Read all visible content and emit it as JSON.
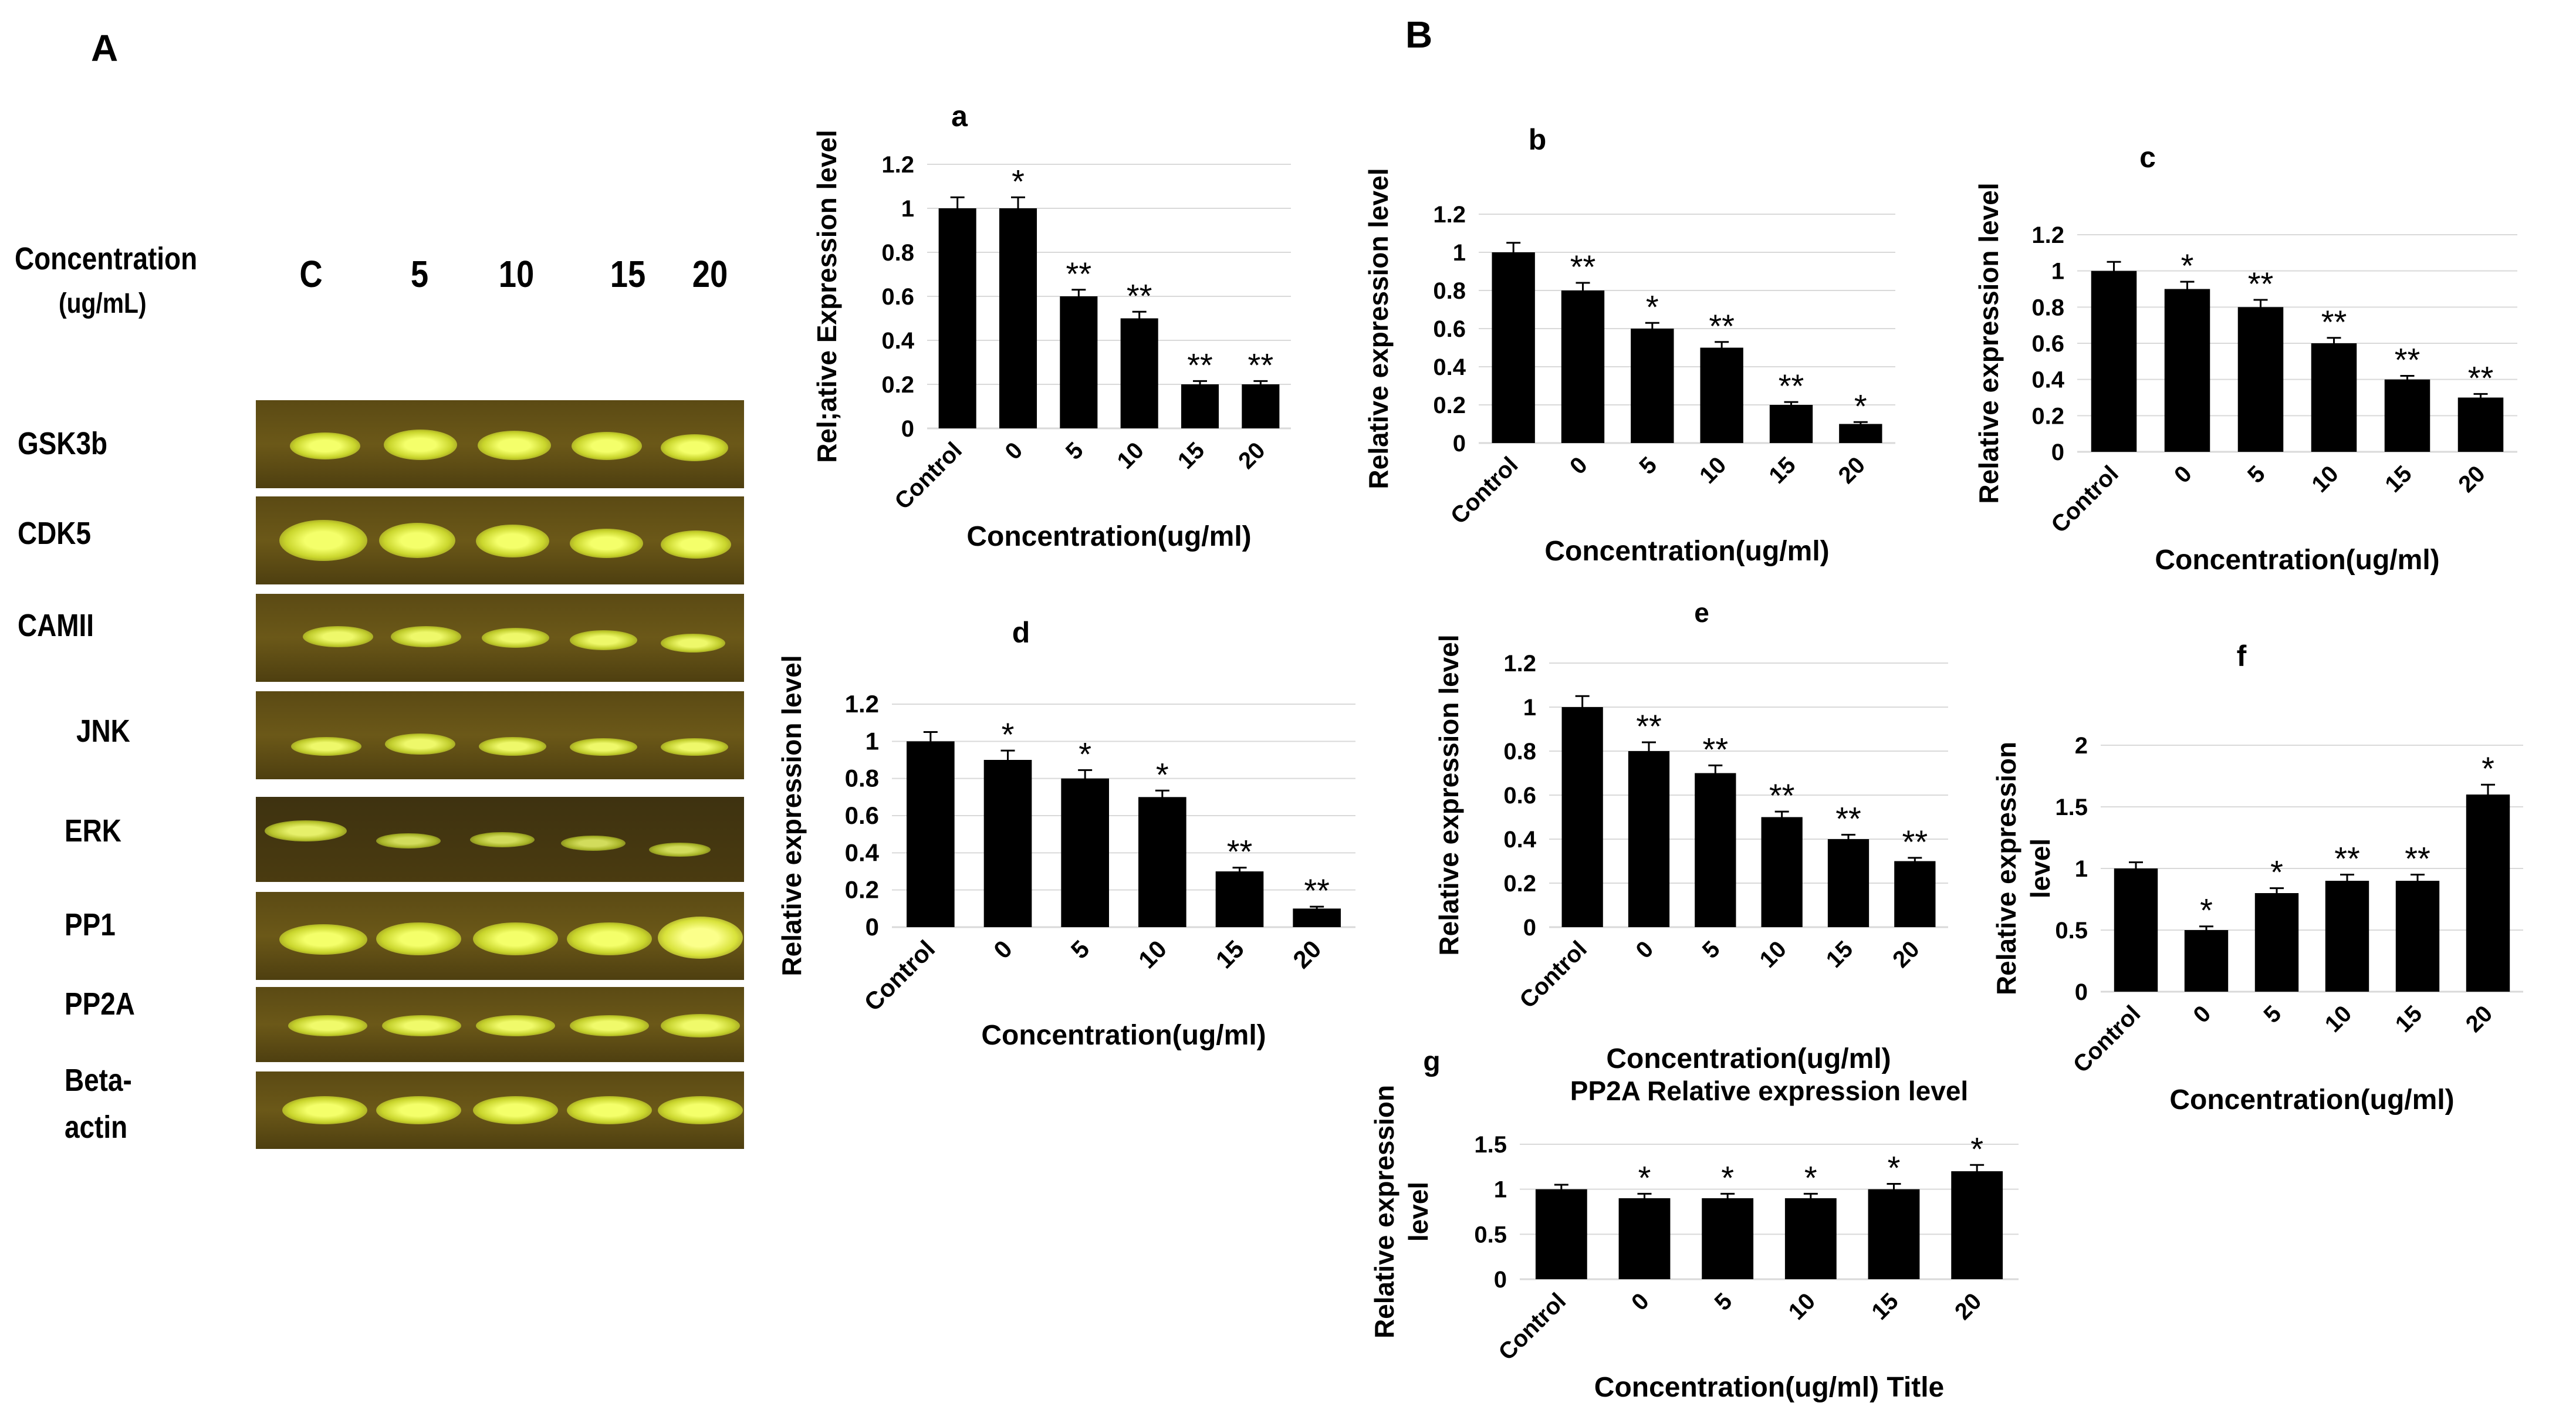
{
  "panel_labels": {
    "A": "A",
    "B": "B"
  },
  "gel": {
    "concentration_label": "Concentration",
    "concentration_unit": "(ug/mL)",
    "lanes": [
      "C",
      "5",
      "10",
      "15",
      "20"
    ],
    "genes": [
      "GSK3b",
      "CDK5",
      "CAMII",
      "JNK",
      "ERK",
      "PP1",
      "PP2A",
      "Beta-",
      "actin"
    ]
  },
  "chart_data": [
    {
      "id": "a",
      "type": "bar",
      "title": "a",
      "categories": [
        "Control",
        "0",
        "5",
        "10",
        "15",
        "20"
      ],
      "values": [
        1.0,
        1.0,
        0.6,
        0.5,
        0.2,
        0.2
      ],
      "errors": [
        0.05,
        0.05,
        0.03,
        0.03,
        0.015,
        0.015
      ],
      "significance": [
        "",
        "*",
        "**",
        "**",
        "**",
        "**"
      ],
      "xlabel": "Concentration(ug/ml)",
      "ylabel": "Rel;ative Expression level",
      "ylim": [
        0,
        1.2
      ],
      "yticks": [
        "0",
        "0.2",
        "0.4",
        "0.6",
        "0.8",
        "1",
        "1.2"
      ]
    },
    {
      "id": "b",
      "type": "bar",
      "title": "b",
      "categories": [
        "Control",
        "0",
        "5",
        "10",
        "15",
        "20"
      ],
      "values": [
        1.0,
        0.8,
        0.6,
        0.5,
        0.2,
        0.1
      ],
      "errors": [
        0.05,
        0.04,
        0.03,
        0.03,
        0.015,
        0.01
      ],
      "significance": [
        "",
        "**",
        "*",
        "**",
        "**",
        "*"
      ],
      "xlabel": "Concentration(ug/ml)",
      "ylabel": "Relative expression level",
      "ylim": [
        0,
        1.2
      ],
      "yticks": [
        "0",
        "0.2",
        "0.4",
        "0.6",
        "0.8",
        "1",
        "1.2"
      ]
    },
    {
      "id": "c",
      "type": "bar",
      "title": "c",
      "categories": [
        "Control",
        "0",
        "5",
        "10",
        "15",
        "20"
      ],
      "values": [
        1.0,
        0.9,
        0.8,
        0.6,
        0.4,
        0.3
      ],
      "errors": [
        0.05,
        0.04,
        0.04,
        0.03,
        0.02,
        0.02
      ],
      "significance": [
        "",
        "*",
        "**",
        "**",
        "**",
        "**"
      ],
      "xlabel": "Concentration(ug/ml)",
      "ylabel": "Relative expression level",
      "ylim": [
        0,
        1.2
      ],
      "yticks": [
        "0",
        "0.2",
        "0.4",
        "0.6",
        "0.8",
        "1",
        "1.2"
      ]
    },
    {
      "id": "d",
      "type": "bar",
      "title": "d",
      "categories": [
        "Control",
        "0",
        "5",
        "10",
        "15",
        "20"
      ],
      "values": [
        1.0,
        0.9,
        0.8,
        0.7,
        0.3,
        0.1
      ],
      "errors": [
        0.05,
        0.05,
        0.045,
        0.035,
        0.02,
        0.01
      ],
      "significance": [
        "",
        "*",
        "*",
        "*",
        "**",
        "**"
      ],
      "xlabel": "Concentration(ug/ml)",
      "ylabel": "Relative expression level",
      "ylim": [
        0,
        1.2
      ],
      "yticks": [
        "0",
        "0.2",
        "0.4",
        "0.6",
        "0.8",
        "1",
        "1.2"
      ]
    },
    {
      "id": "e",
      "type": "bar",
      "title": "e",
      "categories": [
        "Control",
        "0",
        "5",
        "10",
        "15",
        "20"
      ],
      "values": [
        1.0,
        0.8,
        0.7,
        0.5,
        0.4,
        0.3
      ],
      "errors": [
        0.05,
        0.04,
        0.035,
        0.025,
        0.02,
        0.015
      ],
      "significance": [
        "",
        "**",
        "**",
        "**",
        "**",
        "**"
      ],
      "xlabel": "Concentration(ug/ml)",
      "ylabel": "Relative expression level",
      "ylim": [
        0,
        1.2
      ],
      "yticks": [
        "0",
        "0.2",
        "0.4",
        "0.6",
        "0.8",
        "1",
        "1.2"
      ]
    },
    {
      "id": "f",
      "type": "bar",
      "title": "f",
      "categories": [
        "Control",
        "0",
        "5",
        "10",
        "15",
        "20"
      ],
      "values": [
        1.0,
        0.5,
        0.8,
        0.9,
        0.9,
        1.6
      ],
      "errors": [
        0.05,
        0.03,
        0.04,
        0.05,
        0.05,
        0.08
      ],
      "significance": [
        "",
        "*",
        "*",
        "**",
        "**",
        "*"
      ],
      "xlabel": "Concentration(ug/ml)",
      "ylabel": [
        "Relative expression",
        "level"
      ],
      "ylim": [
        0,
        2
      ],
      "yticks": [
        "0",
        "0.5",
        "1",
        "1.5",
        "2"
      ]
    },
    {
      "id": "g",
      "type": "bar",
      "title": "g",
      "subtitle": "PP2A Relative expression level",
      "categories": [
        "Control",
        "0",
        "5",
        "10",
        "15",
        "20"
      ],
      "values": [
        1.0,
        0.9,
        0.9,
        0.9,
        1.0,
        1.2
      ],
      "errors": [
        0.05,
        0.05,
        0.05,
        0.05,
        0.06,
        0.07
      ],
      "significance": [
        "",
        "*",
        "*",
        "*",
        "*",
        "*"
      ],
      "xlabel": "Concentration(ug/ml) Title",
      "ylabel": [
        "Relative expression",
        "level"
      ],
      "ylim": [
        0,
        1.5
      ],
      "yticks": [
        "0",
        "0.5",
        "1",
        "1.5"
      ]
    }
  ]
}
